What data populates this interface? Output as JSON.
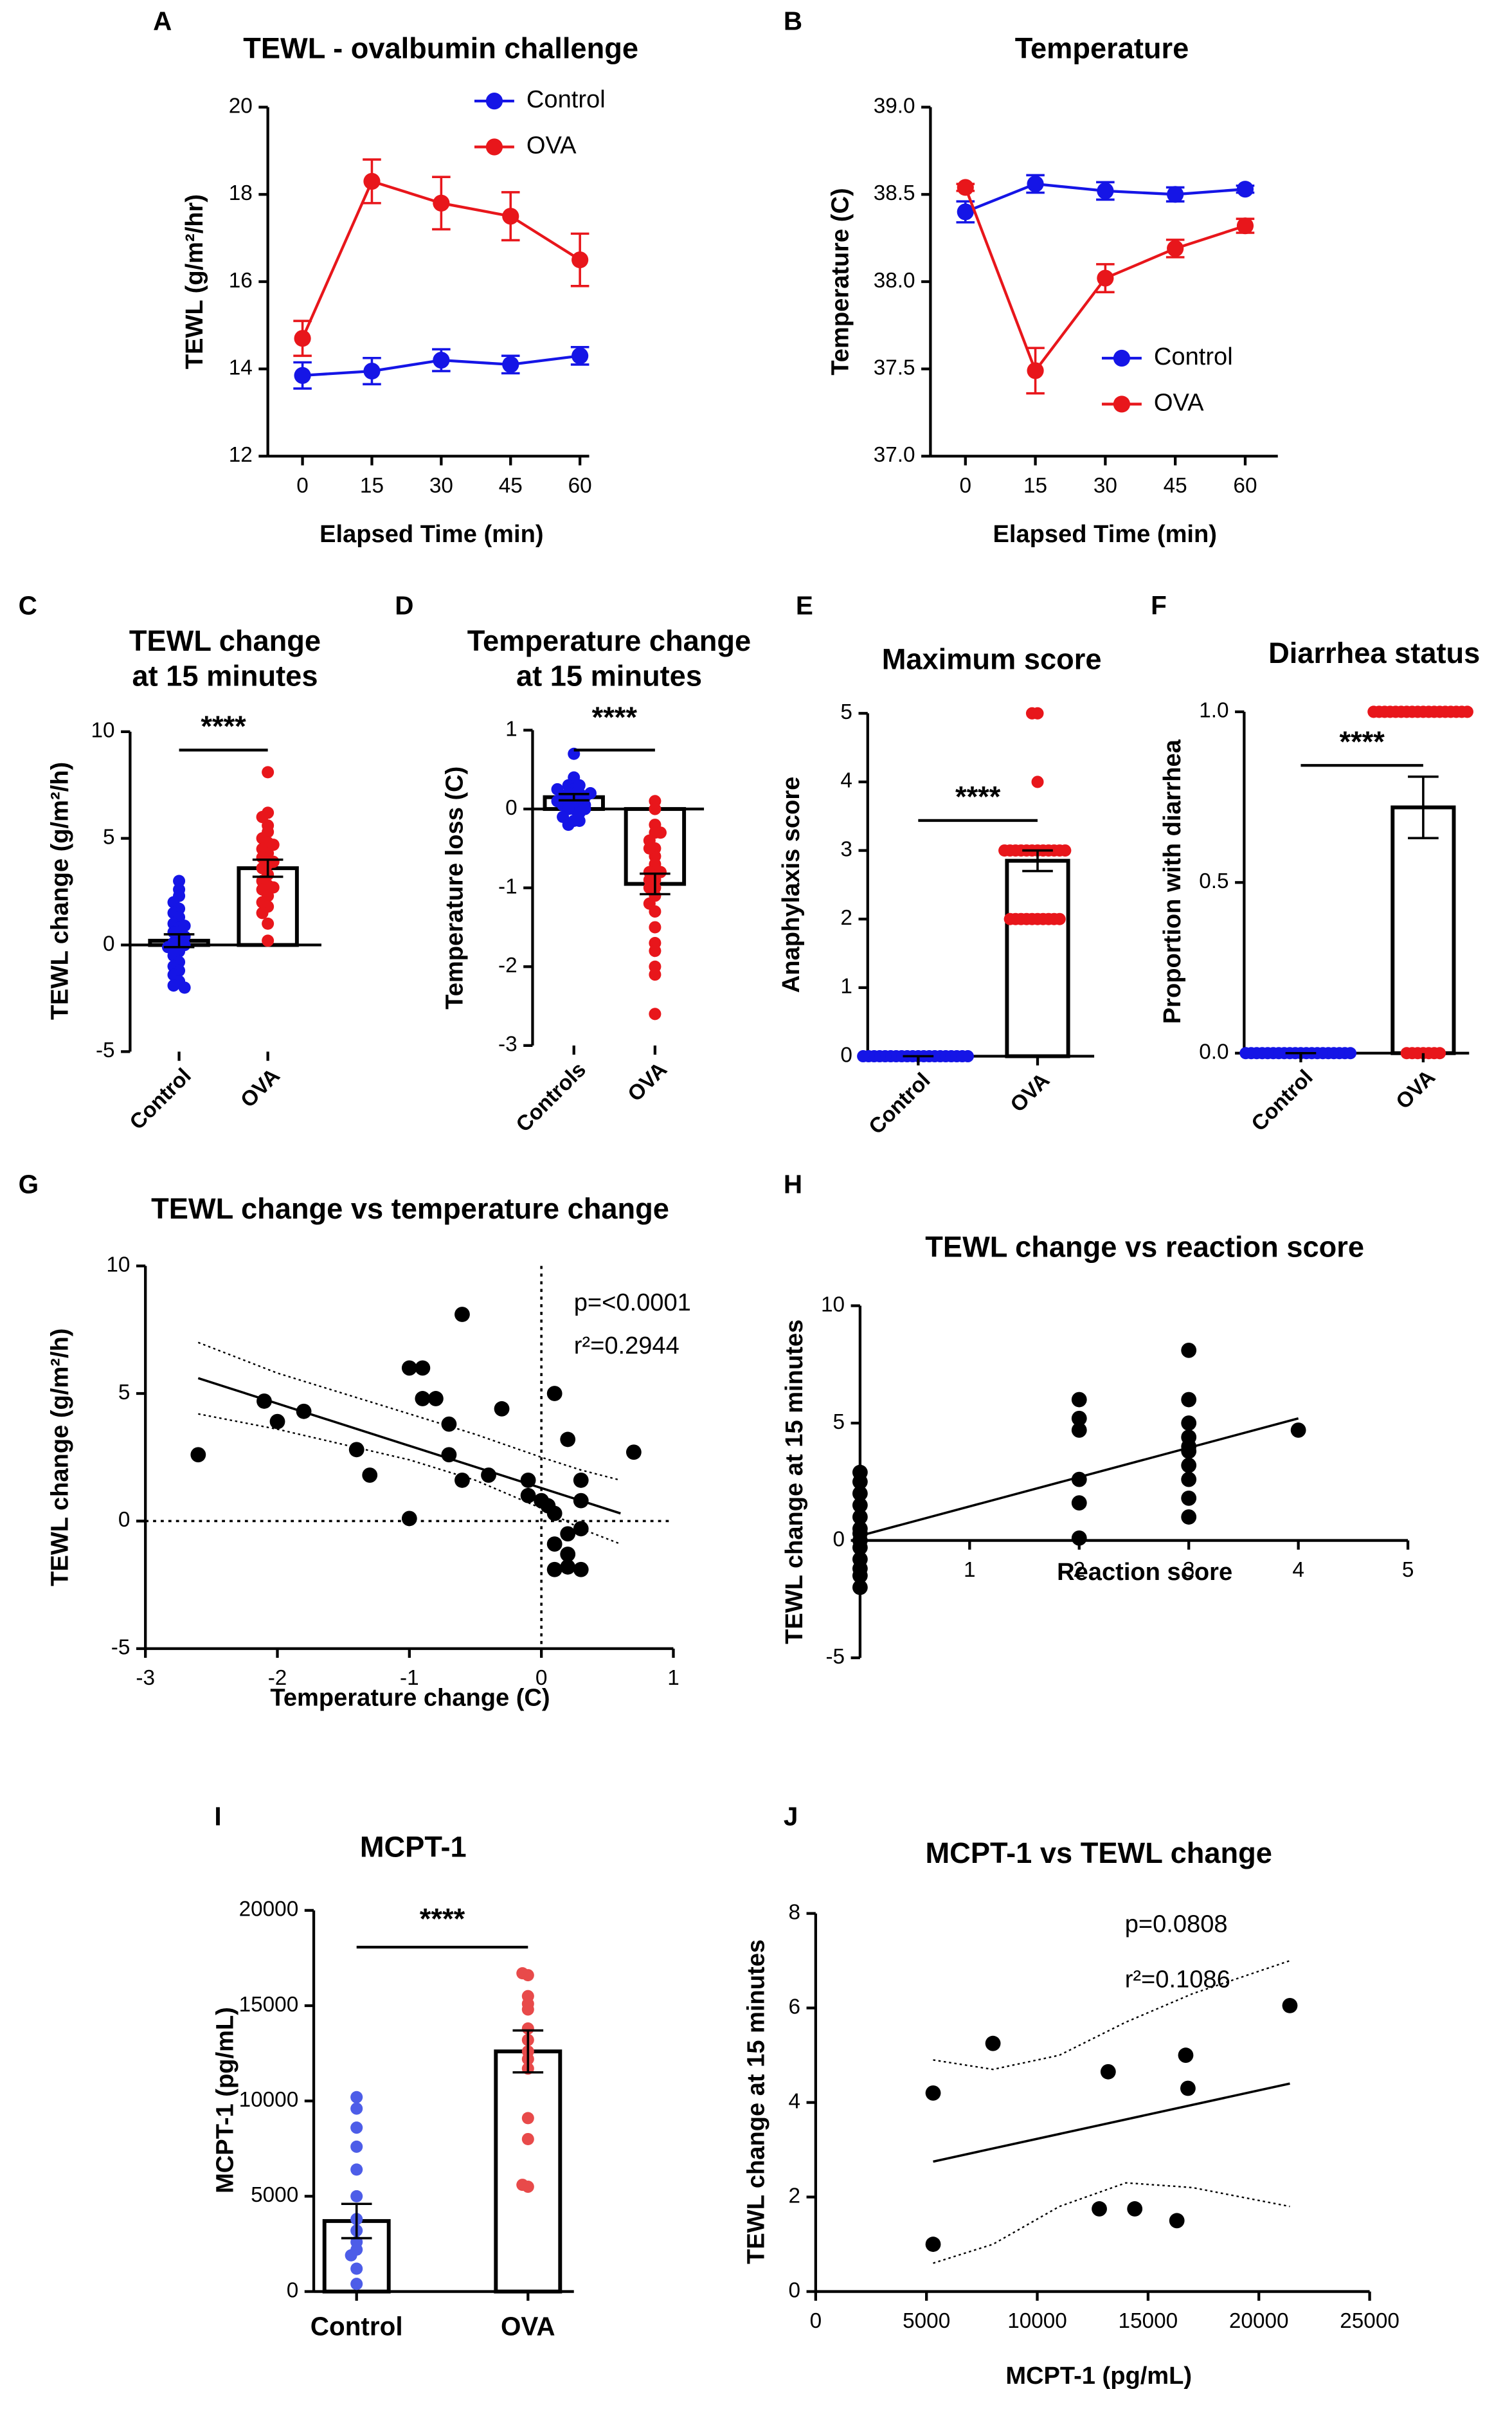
{
  "chart_data": [
    {
      "type": "line",
      "panel": "A",
      "title": "TEWL - ovalbumin challenge",
      "xlabel": "Elapsed Time (min)",
      "ylabel": "TEWL (g/m²/hr)",
      "x": [
        0,
        15,
        30,
        45,
        60
      ],
      "xlim": [
        -7.5,
        62
      ],
      "xticks": [
        0,
        15,
        30,
        45,
        60
      ],
      "ylim": [
        12,
        20
      ],
      "yticks": [
        12,
        14,
        16,
        18,
        20
      ],
      "legend": "upper right",
      "series": [
        {
          "name": "Control",
          "color": "#1515e6",
          "values": [
            13.85,
            13.95,
            14.2,
            14.1,
            14.3
          ],
          "errors": [
            0.3,
            0.3,
            0.25,
            0.2,
            0.2
          ]
        },
        {
          "name": "OVA",
          "color": "#e8161b",
          "values": [
            14.7,
            18.3,
            17.8,
            17.5,
            16.5
          ],
          "errors": [
            0.4,
            0.5,
            0.6,
            0.55,
            0.6
          ]
        }
      ]
    },
    {
      "type": "line",
      "panel": "B",
      "title": "Temperature",
      "xlabel": "Elapsed Time (min)",
      "ylabel": "Temperature (C)",
      "x": [
        0,
        15,
        30,
        45,
        60
      ],
      "xlim": [
        -7.5,
        67
      ],
      "xticks": [
        0,
        15,
        30,
        45,
        60
      ],
      "ylim": [
        37,
        39
      ],
      "yticks": [
        {
          "value": 37,
          "label": "37.0"
        },
        37.5,
        {
          "value": 38,
          "label": "38.0"
        },
        38.5,
        {
          "value": 39,
          "label": "39.0"
        }
      ],
      "legend": "lower right",
      "series": [
        {
          "name": "Control",
          "color": "#1515e6",
          "values": [
            38.4,
            38.56,
            38.52,
            38.5,
            38.53
          ],
          "errors": [
            0.06,
            0.05,
            0.05,
            0.04,
            0.02
          ]
        },
        {
          "name": "OVA",
          "color": "#e8161b",
          "values": [
            38.54,
            37.49,
            38.02,
            38.19,
            38.32
          ],
          "errors": [
            0.02,
            0.13,
            0.08,
            0.05,
            0.04
          ]
        }
      ]
    },
    {
      "type": "bar",
      "panel": "C",
      "title": [
        "TEWL change",
        "at 15 minutes"
      ],
      "ylabel": "TEWL change (g/m²/h)",
      "significance": "****",
      "categories": [
        "Control",
        "OVA"
      ],
      "ylim": [
        -5,
        10
      ],
      "yticks": [
        -5,
        0,
        5,
        10
      ],
      "groups": [
        {
          "color": "#1515e6",
          "mean": 0.2,
          "sem": 0.3,
          "values": [
            3.0,
            2.6,
            2.3,
            2.0,
            1.7,
            1.5,
            1.3,
            1.0,
            0.8,
            0.6,
            0.4,
            0.3,
            0.1,
            0,
            -0.1,
            -0.3,
            -0.5,
            -0.8,
            -1.0,
            -1.2,
            -1.4,
            -1.7,
            -1.9,
            -2.0,
            0.9
          ]
        },
        {
          "color": "#e8161b",
          "mean": 3.6,
          "sem": 0.4,
          "values": [
            8.1,
            6.2,
            6.0,
            5.3,
            5.0,
            4.8,
            4.5,
            4.3,
            4.1,
            3.8,
            3.6,
            3.3,
            3.0,
            2.8,
            2.6,
            2.3,
            2.0,
            1.8,
            1.5,
            1.0,
            0.2,
            4.7,
            5.6,
            2.7,
            3.9
          ]
        }
      ]
    },
    {
      "type": "bar",
      "panel": "D",
      "title": [
        "Temperature change",
        "at 15 minutes"
      ],
      "ylabel": "Temperature loss (C)",
      "significance": "****",
      "categories": [
        "Controls",
        "OVA"
      ],
      "ylim": [
        -3,
        1
      ],
      "yticks": [
        -3,
        -2,
        -1,
        0,
        1
      ],
      "groups": [
        {
          "color": "#1515e6",
          "mean": 0.15,
          "sem": 0.04,
          "values": [
            0.7,
            0.4,
            0.3,
            0.25,
            0.2,
            0.2,
            0.15,
            0.15,
            0.1,
            0.1,
            0.1,
            0.05,
            0.05,
            0,
            0,
            -0.05,
            -0.1,
            -0.15,
            -0.2,
            0.3,
            0.25,
            0.2,
            0.1,
            0,
            -0.15
          ]
        },
        {
          "color": "#e8161b",
          "mean": -0.95,
          "sem": 0.13,
          "values": [
            0.1,
            0,
            -0.2,
            -0.3,
            -0.4,
            -0.5,
            -0.6,
            -0.7,
            -0.8,
            -0.8,
            -0.9,
            -0.9,
            -1.0,
            -1.0,
            -1.1,
            -1.2,
            -1.3,
            -1.5,
            -1.7,
            -1.8,
            -2.0,
            -2.1,
            -2.6,
            -0.5,
            -0.3
          ]
        }
      ]
    },
    {
      "type": "bar",
      "panel": "E",
      "title": "Maximum score",
      "ylabel": "Anaphylaxis score",
      "significance": "****",
      "categories": [
        "Control",
        "OVA"
      ],
      "ylim": [
        0,
        5
      ],
      "yticks": [
        0,
        1,
        2,
        3,
        4,
        5
      ],
      "groups": [
        {
          "color": "#1515e6",
          "mean": 0,
          "sem": 0,
          "values": [
            0,
            0,
            0,
            0,
            0,
            0,
            0,
            0,
            0,
            0,
            0,
            0,
            0,
            0,
            0,
            0,
            0,
            0,
            0,
            0
          ]
        },
        {
          "color": "#e8161b",
          "mean": 2.85,
          "sem": 0.15,
          "values": [
            5,
            5,
            4,
            3,
            3,
            3,
            3,
            3,
            3,
            3,
            3,
            3,
            3,
            3,
            3,
            2,
            2,
            2,
            2,
            2,
            2,
            2,
            2,
            2,
            2
          ]
        }
      ]
    },
    {
      "type": "bar",
      "panel": "F",
      "title": "Diarrhea status",
      "ylabel": "Proportion with diarrhea",
      "significance": "****",
      "categories": [
        "Control",
        "OVA"
      ],
      "ylim": [
        0,
        1
      ],
      "yticks": [
        {
          "value": 0,
          "label": "0.0"
        },
        0.5,
        {
          "value": 1,
          "label": "1.0"
        }
      ],
      "groups": [
        {
          "color": "#1515e6",
          "mean": 0,
          "sem": 0,
          "values": [
            0,
            0,
            0,
            0,
            0,
            0,
            0,
            0,
            0,
            0,
            0,
            0,
            0,
            0,
            0,
            0,
            0,
            0,
            0,
            0
          ]
        },
        {
          "color": "#e8161b",
          "mean": 0.72,
          "sem": 0.09,
          "values": [
            1,
            1,
            1,
            1,
            1,
            1,
            1,
            1,
            1,
            1,
            1,
            1,
            1,
            1,
            1,
            1,
            1,
            1,
            0,
            0,
            0,
            0,
            0,
            0,
            0
          ]
        }
      ]
    },
    {
      "type": "scatter",
      "panel": "G",
      "title": "TEWL change vs temperature change",
      "xlabel": "Temperature change (C)",
      "ylabel": "TEWL change (g/m²/h)",
      "xlim": [
        -3,
        1
      ],
      "xticks": [
        -3,
        -2,
        -1,
        0,
        1
      ],
      "ylim": [
        -5,
        10
      ],
      "yticks": [
        -5,
        0,
        5,
        10
      ],
      "zero_lines": true,
      "color": "#000000",
      "annotations": [
        "p=<0.0001",
        "r²=0.2944"
      ],
      "x": [
        -2.6,
        -2.1,
        -2.0,
        -1.8,
        -1.4,
        -1.3,
        -1.0,
        -0.9,
        -0.9,
        -0.8,
        -0.7,
        -0.7,
        -0.6,
        -0.6,
        -0.4,
        -0.3,
        -1.0,
        -0.1,
        -0.1,
        0,
        0.05,
        0.1,
        0.1,
        0.1,
        0.1,
        0.2,
        0.2,
        0.2,
        0.2,
        0.3,
        0.3,
        0.3,
        0.3,
        0.7
      ],
      "values": [
        2.6,
        4.7,
        3.9,
        4.3,
        2.8,
        1.8,
        6.0,
        6.0,
        4.8,
        4.8,
        3.8,
        2.6,
        8.1,
        1.6,
        1.8,
        4.4,
        0.1,
        1.6,
        1.0,
        0.8,
        0.6,
        5.0,
        0.3,
        -0.9,
        -1.9,
        3.2,
        -0.5,
        -1.3,
        -1.8,
        1.6,
        0.8,
        -0.3,
        -1.9,
        2.7
      ],
      "fit": {
        "x": [
          -2.6,
          0.6
        ],
        "values": [
          5.6,
          0.3
        ]
      },
      "ci": {
        "x": [
          -2.6,
          -2,
          -1.5,
          -1,
          -0.5,
          0,
          0.3,
          0.6
        ],
        "upper": [
          7.0,
          5.8,
          5.0,
          4.2,
          3.4,
          2.5,
          2.0,
          1.6
        ],
        "lower": [
          4.2,
          3.6,
          3.0,
          2.4,
          1.6,
          0.5,
          -0.3,
          -0.9
        ]
      }
    },
    {
      "type": "scatter",
      "panel": "H",
      "title": "TEWL change vs reaction score",
      "xlabel": "Reaction score",
      "ylabel": "TEWL change at 15 minutes",
      "xlim": [
        0,
        5
      ],
      "xticks": [
        1,
        2,
        3,
        4,
        5
      ],
      "ylim": [
        -5,
        10
      ],
      "yticks": [
        -5,
        0,
        5,
        10
      ],
      "axes_cross": true,
      "color": "#000000",
      "x": [
        0,
        0,
        0,
        0,
        0,
        0,
        0,
        0,
        0,
        0,
        0,
        0,
        0,
        2,
        2,
        2,
        2,
        2,
        2,
        3,
        3,
        3,
        3,
        3,
        3,
        3,
        3,
        3,
        3,
        4
      ],
      "values": [
        2.9,
        2.5,
        2.0,
        1.5,
        1.0,
        0.5,
        0.3,
        0,
        -0.3,
        -0.8,
        -1.2,
        -1.5,
        -2.0,
        6.0,
        5.2,
        4.7,
        2.6,
        1.6,
        0.1,
        8.1,
        6.0,
        5.0,
        4.4,
        4.0,
        3.8,
        3.2,
        2.6,
        1.8,
        1.0,
        4.7
      ],
      "fit": {
        "x": [
          0,
          4
        ],
        "values": [
          0.2,
          5.2
        ]
      }
    },
    {
      "type": "bar",
      "panel": "I",
      "title": "MCPT-1",
      "ylabel": "MCPT-1 (pg/mL)",
      "significance": "****",
      "horizontal_labels": true,
      "categories": [
        "Control",
        "OVA"
      ],
      "ylim": [
        0,
        20000
      ],
      "yticks": [
        0,
        5000,
        10000,
        15000,
        20000
      ],
      "groups": [
        {
          "color": "#4d5de8",
          "mean": 3700,
          "sem": 900,
          "values": [
            10200,
            9600,
            8600,
            7600,
            6400,
            5000,
            3800,
            3200,
            2600,
            2200,
            1900,
            1200,
            400
          ]
        },
        {
          "color": "#e84a4a",
          "mean": 12600,
          "sem": 1100,
          "values": [
            16600,
            16700,
            15500,
            15100,
            14800,
            13800,
            13200,
            12600,
            12200,
            11700,
            9100,
            8000,
            5500,
            5600
          ]
        }
      ]
    },
    {
      "type": "scatter",
      "panel": "J",
      "title": "MCPT-1 vs TEWL change",
      "xlabel": "MCPT-1 (pg/mL)",
      "ylabel": "TEWL change at 15 minutes",
      "xlim": [
        0,
        25000
      ],
      "xticks": [
        0,
        5000,
        10000,
        15000,
        20000,
        25000
      ],
      "ylim": [
        0,
        8
      ],
      "yticks": [
        0,
        2,
        4,
        6,
        8
      ],
      "color": "#000000",
      "annotations": [
        "p=0.0808",
        "r²=0.1086"
      ],
      "x": [
        5300,
        5300,
        8000,
        12800,
        13200,
        14400,
        16300,
        16700,
        16800,
        21400
      ],
      "values": [
        4.2,
        1.0,
        5.25,
        1.75,
        4.65,
        1.75,
        1.5,
        5.0,
        4.3,
        6.05
      ],
      "fit": {
        "x": [
          5300,
          21400
        ],
        "values": [
          2.75,
          4.4
        ]
      },
      "ci": {
        "x": [
          5300,
          8000,
          11000,
          14000,
          17000,
          21400
        ],
        "upper": [
          4.9,
          4.7,
          5.0,
          5.7,
          6.3,
          7.0
        ],
        "lower": [
          0.6,
          1.0,
          1.8,
          2.3,
          2.2,
          1.8
        ]
      }
    }
  ]
}
